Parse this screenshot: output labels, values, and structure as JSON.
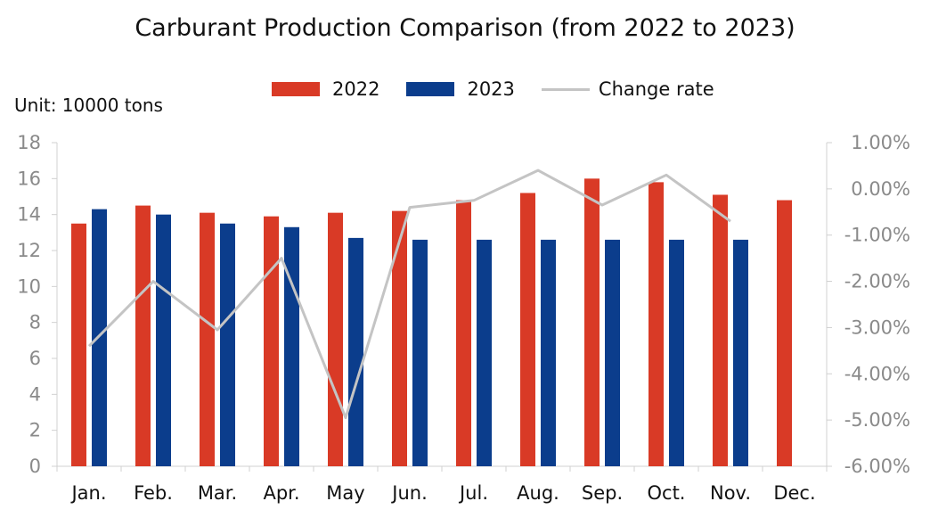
{
  "chart_data": {
    "type": "bar",
    "title": "Carburant Production Comparison (from 2022 to 2023)",
    "unit_label": "Unit: 10000 tons",
    "categories": [
      "Jan.",
      "Feb.",
      "Mar.",
      "Apr.",
      "May",
      "Jun.",
      "Jul.",
      "Aug.",
      "Sep.",
      "Oct.",
      "Nov.",
      "Dec."
    ],
    "series": [
      {
        "name": "2022",
        "type": "bar",
        "color": "#d93a26",
        "values": [
          13.5,
          14.5,
          14.1,
          13.9,
          14.1,
          14.2,
          14.8,
          15.2,
          16.0,
          15.8,
          15.1,
          14.8
        ]
      },
      {
        "name": "2023",
        "type": "bar",
        "color": "#0b3d8c",
        "values": [
          14.3,
          14.0,
          13.5,
          13.3,
          12.7,
          12.6,
          12.6,
          12.6,
          12.6,
          12.6,
          12.6,
          null
        ]
      },
      {
        "name": "Change rate",
        "type": "line",
        "axis": "right",
        "color": "#c4c4c4",
        "values": [
          -3.4,
          -2.0,
          -3.05,
          -1.5,
          -4.95,
          -0.4,
          -0.25,
          0.4,
          -0.35,
          0.3,
          -0.7,
          null
        ]
      }
    ],
    "ylim": [
      0,
      18
    ],
    "yticks": [
      "0",
      "2",
      "4",
      "6",
      "8",
      "10",
      "12",
      "14",
      "16",
      "18"
    ],
    "y2lim": [
      -6.0,
      1.0
    ],
    "y2ticks": [
      "-6.00%",
      "-5.00%",
      "-4.00%",
      "-3.00%",
      "-2.00%",
      "-1.00%",
      "0.00%",
      "1.00%"
    ],
    "grid": false,
    "legend_position": "top-center"
  }
}
